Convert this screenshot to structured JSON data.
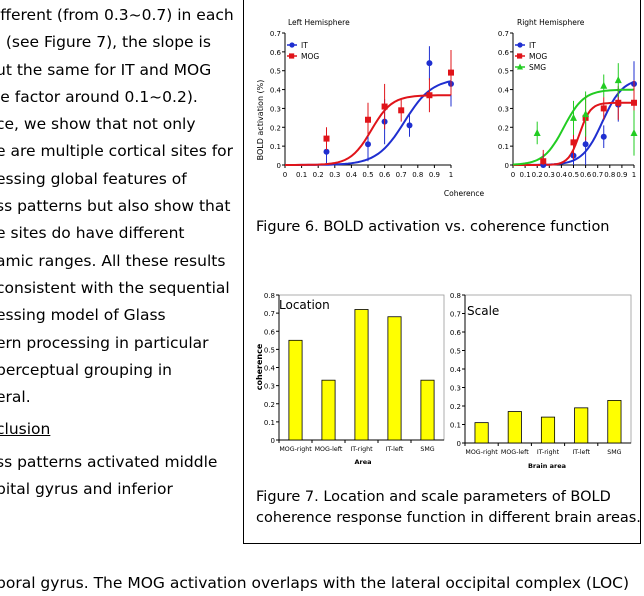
{
  "body_text": {
    "lines": [
      "ifferent (from 0.3~0.7) in each",
      "  (see Figure 7), the slope is",
      "ut the same for IT and MOG",
      "le factor around 0.1~0.2).",
      "ce, we show that not only",
      "e are multiple cortical sites for",
      "essing global features of",
      "ss patterns but also show that",
      "e sites do have different",
      "amic ranges. All these results",
      "consistent with the sequential",
      "essing model of Glass",
      "ern processing in particular",
      "perceptual grouping in",
      "eral."
    ],
    "heading": "clusion",
    "after_lines": [
      "ss patterns activated middle",
      "pital gyrus and inferior"
    ],
    "last_line": "poral gyrus. The MOG activation overlaps with the lateral occipital complex (LOC)"
  },
  "figure6": {
    "caption": "Figure 6. BOLD activation vs. coherence function",
    "ylabel": "BOLD activation (%)",
    "xlabel": "Coherence",
    "left_title": "Left Hemisphere",
    "right_title": "Right Hemisphere",
    "yticks": [
      "0",
      "0.1",
      "0.2",
      "0.3",
      "0.4",
      "0.5",
      "0.6",
      "0.7"
    ],
    "xticks": [
      "0",
      "0.1",
      "0.2",
      "0.3",
      "0.4",
      "0.5",
      "0.6",
      "0.7",
      "0.8",
      "0.9",
      "1"
    ],
    "left_legend": [
      "IT",
      "MOG"
    ],
    "right_legend": [
      "IT",
      "MOG",
      "SMG"
    ]
  },
  "figure7": {
    "caption_line1": "Figure 7. Location and scale parameters of BOLD",
    "caption_line2": "coherence response function in different brain areas.",
    "ylabel": "coherence",
    "left_title": "Location",
    "right_title": "Scale",
    "left_xlabel": "Area",
    "right_xlabel": "Brain area",
    "yticks": [
      "0",
      "0.1",
      "0.2",
      "0.3",
      "0.4",
      "0.5",
      "0.6",
      "0.7",
      "0.8"
    ]
  },
  "chart_data": [
    {
      "type": "scatter",
      "title": "Left Hemisphere",
      "xlabel": "Coherence",
      "ylabel": "BOLD activation (%)",
      "xlim": [
        0,
        1
      ],
      "ylim": [
        0,
        0.7
      ],
      "grid": false,
      "legend": "top-left",
      "x": [
        0.25,
        0.5,
        0.6,
        0.7,
        0.75,
        0.85,
        1.0
      ],
      "series": [
        {
          "name": "IT",
          "color": "#1f2fd0",
          "x": [
            0.25,
            0.5,
            0.6,
            0.75,
            0.87,
            1.0
          ],
          "values": [
            0.07,
            0.11,
            0.23,
            0.21,
            0.54,
            0.43
          ],
          "fit": "sigmoid",
          "fit_values": [
            0.0,
            0.03,
            0.1,
            0.22,
            0.34,
            0.42,
            0.45
          ]
        },
        {
          "name": "MOG",
          "color": "#e0141a",
          "x": [
            0.25,
            0.5,
            0.6,
            0.7,
            0.87,
            1.0
          ],
          "values": [
            0.14,
            0.24,
            0.31,
            0.29,
            0.37,
            0.49
          ],
          "fit": "sigmoid",
          "fit_values": [
            0.01,
            0.1,
            0.25,
            0.34,
            0.36,
            0.37,
            0.37
          ]
        }
      ]
    },
    {
      "type": "scatter",
      "title": "Right Hemisphere",
      "xlabel": "Coherence",
      "ylabel": "BOLD activation (%)",
      "xlim": [
        0,
        1
      ],
      "ylim": [
        0,
        0.7
      ],
      "grid": false,
      "legend": "top-left",
      "series": [
        {
          "name": "IT",
          "color": "#1f2fd0",
          "x": [
            0.25,
            0.5,
            0.6,
            0.75,
            0.87,
            1.0
          ],
          "values": [
            0.0,
            0.05,
            0.11,
            0.15,
            0.32,
            0.43
          ]
        },
        {
          "name": "MOG",
          "color": "#e0141a",
          "x": [
            0.25,
            0.5,
            0.6,
            0.75,
            0.87,
            1.0
          ],
          "values": [
            0.02,
            0.12,
            0.25,
            0.3,
            0.33,
            0.33
          ]
        },
        {
          "name": "SMG",
          "color": "#22cc22",
          "x": [
            0.2,
            0.5,
            0.6,
            0.75,
            0.87,
            1.0
          ],
          "values": [
            0.17,
            0.25,
            0.27,
            0.42,
            0.45,
            0.17
          ]
        }
      ]
    },
    {
      "type": "bar",
      "title": "Location",
      "xlabel": "Area",
      "ylabel": "coherence",
      "ylim": [
        0,
        0.8
      ],
      "categories": [
        "MOG-right",
        "MOG-left",
        "IT-right",
        "IT-left",
        "SMG"
      ],
      "values": [
        0.55,
        0.33,
        0.72,
        0.68,
        0.33
      ],
      "color": "#ffff00"
    },
    {
      "type": "bar",
      "title": "Scale",
      "xlabel": "Brain area",
      "ylabel": "",
      "ylim": [
        0,
        0.8
      ],
      "categories": [
        "MOG-right",
        "MOG-left",
        "IT-right",
        "IT-left",
        "SMG"
      ],
      "values": [
        0.11,
        0.17,
        0.14,
        0.19,
        0.23
      ],
      "color": "#ffff00"
    }
  ]
}
